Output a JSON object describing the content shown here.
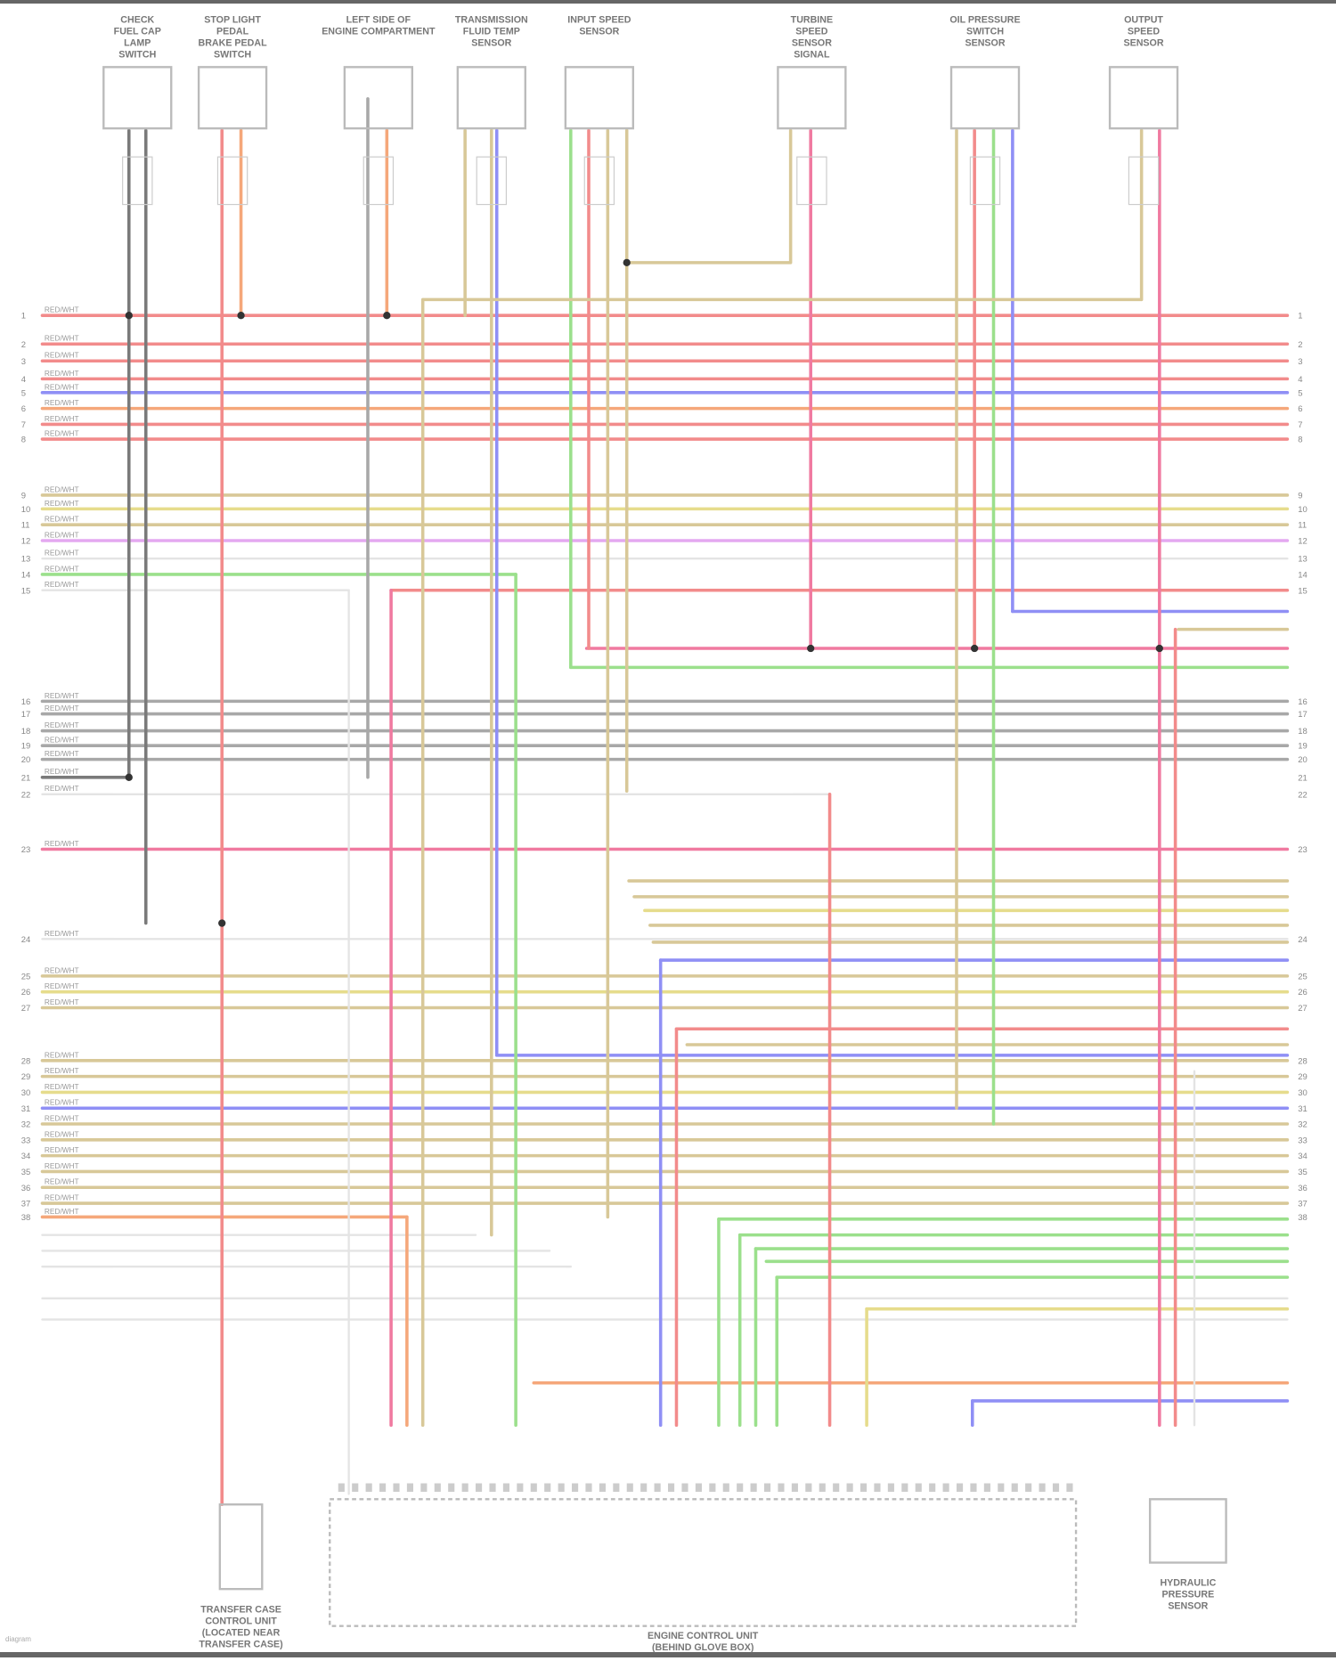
{
  "components": {
    "top": [
      {
        "id": "c1",
        "label": [
          "CHECK",
          "FUEL CAP",
          "LAMP",
          "SWITCH"
        ]
      },
      {
        "id": "c2",
        "label": [
          "STOP LIGHT",
          "PEDAL",
          "BRAKE PEDAL",
          "SWITCH"
        ]
      },
      {
        "id": "c3",
        "label": [
          "LEFT SIDE OF",
          "ENGINE COMPARTMENT"
        ]
      },
      {
        "id": "c4",
        "label": [
          "TRANSMISSION",
          "FLUID TEMP",
          "SENSOR"
        ]
      },
      {
        "id": "c5",
        "label": [
          "INPUT SPEED",
          "SENSOR"
        ]
      },
      {
        "id": "c6",
        "label": [
          "TURBINE",
          "SPEED",
          "SENSOR",
          "SIGNAL"
        ]
      },
      {
        "id": "c7",
        "label": [
          "OIL PRESSURE",
          "SWITCH",
          "SENSOR"
        ]
      },
      {
        "id": "c8",
        "label": [
          "OUTPUT",
          "SPEED",
          "SENSOR"
        ]
      }
    ],
    "bottom": [
      {
        "id": "b1",
        "label": [
          "TRANSFER CASE",
          "CONTROL UNIT",
          "(LOCATED NEAR",
          "TRANSFER CASE)"
        ]
      },
      {
        "id": "b2",
        "label": [
          "ENGINE CONTROL UNIT",
          "(BEHIND GLOVE BOX)"
        ]
      },
      {
        "id": "b3",
        "label": [
          "HYDRAULIC",
          "PRESSURE",
          "SENSOR"
        ]
      }
    ]
  },
  "pins_left": [
    "1",
    "2",
    "3",
    "4",
    "5",
    "6",
    "7",
    "8",
    "9",
    "10",
    "11",
    "12",
    "13",
    "14",
    "15",
    "16",
    "17",
    "18",
    "19",
    "20",
    "21",
    "22",
    "23",
    "24",
    "25",
    "26",
    "27",
    "28",
    "29",
    "30",
    "31",
    "32",
    "33",
    "34",
    "35",
    "36",
    "37",
    "38"
  ],
  "wire_colors": {
    "red": "#f28b8b",
    "pink": "#f07aa0",
    "blue": "#8f8ff5",
    "orange": "#f5a77a",
    "tan": "#d8c898",
    "yellow": "#e6dc8c",
    "green": "#9be08c",
    "gray": "#a8a8a8",
    "dark": "#7a7a7a",
    "pale": "#e4e4e4",
    "violet": "#e4a8f0"
  },
  "wire_code": "RED/WHT",
  "footer": "diagram"
}
